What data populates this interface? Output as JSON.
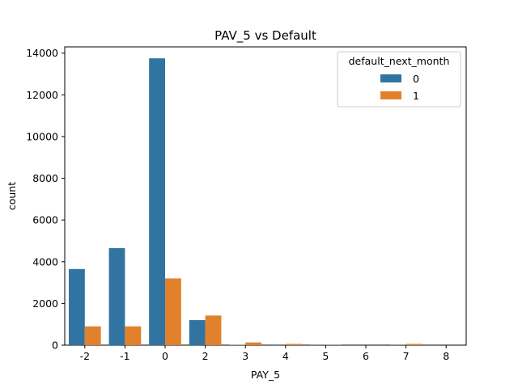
{
  "chart_data": {
    "type": "bar",
    "title": "PAV_5 vs Default",
    "xlabel": "PAY_5",
    "ylabel": "count",
    "categories": [
      "-2",
      "-1",
      "0",
      "2",
      "3",
      "4",
      "5",
      "6",
      "7",
      "8"
    ],
    "series": [
      {
        "name": "0",
        "color": "#3274a1",
        "values": [
          3650,
          4650,
          13750,
          1200,
          20,
          30,
          10,
          0,
          10,
          0
        ]
      },
      {
        "name": "1",
        "color": "#e1812c",
        "values": [
          900,
          900,
          3200,
          1420,
          130,
          60,
          10,
          0,
          60,
          0
        ]
      }
    ],
    "ylim": [
      0,
      14300
    ],
    "yticks": [
      0,
      2000,
      4000,
      6000,
      8000,
      10000,
      12000,
      14000
    ],
    "legend": {
      "title": "default_next_month",
      "placement": "top-right"
    },
    "grid": false
  }
}
